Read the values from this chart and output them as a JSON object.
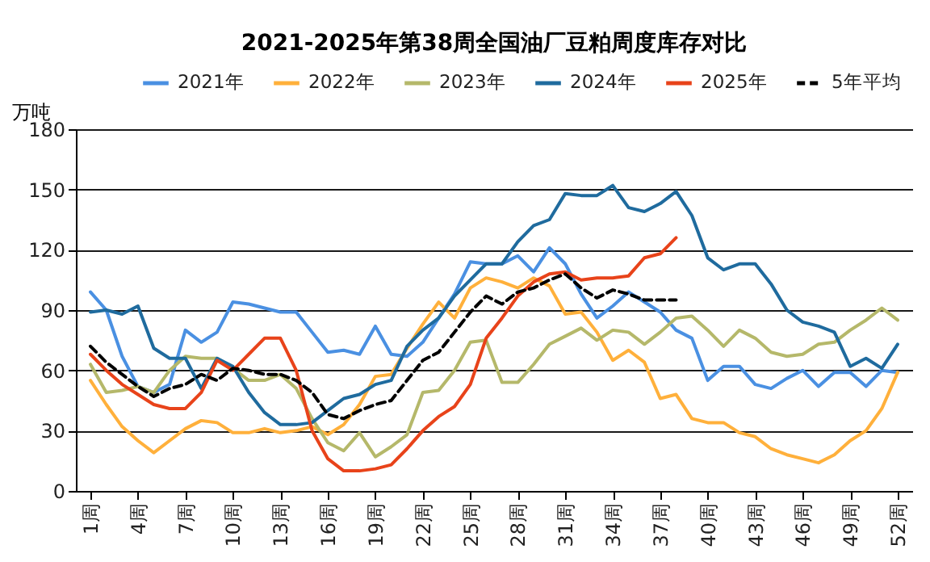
{
  "chart_data": {
    "type": "line",
    "title": "2021-2025年第38周全国油厂豆粕周度库存对比",
    "ylabel": "万吨",
    "categories": [
      "1周",
      null,
      null,
      "4周",
      null,
      null,
      "7周",
      null,
      null,
      "10周",
      null,
      null,
      "13周",
      null,
      null,
      "16周",
      null,
      null,
      "19周",
      null,
      null,
      "22周",
      null,
      null,
      "25周",
      null,
      null,
      "28周",
      null,
      null,
      "31周",
      null,
      null,
      "34周",
      null,
      null,
      "37周",
      null,
      null,
      "40周",
      null,
      null,
      "43周",
      null,
      null,
      "46周",
      null,
      null,
      "49周",
      null,
      null,
      "52周"
    ],
    "series": [
      {
        "name": "2021年",
        "color": "#4a90e2",
        "values": [
          99,
          90,
          67,
          52,
          49,
          53,
          80,
          74,
          79,
          94,
          93,
          91,
          89,
          89,
          79,
          69,
          70,
          68,
          82,
          68,
          67,
          74,
          86,
          98,
          114,
          113,
          113,
          117,
          109,
          121,
          113,
          98,
          86,
          92,
          99,
          94,
          89,
          80,
          76,
          55,
          62,
          62,
          53,
          51,
          56,
          60,
          52,
          59,
          59,
          52,
          60,
          59
        ]
      },
      {
        "name": "2022年",
        "color": "#ffb03b",
        "values": [
          55,
          43,
          32,
          25,
          19,
          25,
          31,
          35,
          34,
          29,
          29,
          31,
          29,
          30,
          32,
          28,
          33,
          43,
          57,
          58,
          71,
          83,
          94,
          86,
          101,
          106,
          104,
          101,
          106,
          102,
          88,
          89,
          79,
          65,
          70,
          64,
          46,
          48,
          36,
          34,
          34,
          29,
          27,
          21,
          18,
          16,
          14,
          18,
          25,
          30,
          41,
          59
        ]
      },
      {
        "name": "2023年",
        "color": "#b5b86a",
        "values": [
          63,
          49,
          50,
          52,
          49,
          60,
          67,
          66,
          66,
          61,
          55,
          55,
          58,
          51,
          36,
          24,
          20,
          29,
          17,
          22,
          28,
          49,
          50,
          60,
          74,
          75,
          54,
          54,
          63,
          73,
          77,
          81,
          75,
          80,
          79,
          73,
          79,
          86,
          87,
          80,
          72,
          80,
          76,
          69,
          67,
          68,
          73,
          74,
          80,
          85,
          91,
          85
        ]
      },
      {
        "name": "2024年",
        "color": "#1f6b9e",
        "values": [
          89,
          90,
          88,
          92,
          71,
          66,
          66,
          51,
          66,
          62,
          49,
          39,
          33,
          33,
          34,
          40,
          46,
          48,
          53,
          55,
          72,
          80,
          86,
          97,
          105,
          113,
          113,
          124,
          132,
          135,
          148,
          147,
          147,
          152,
          141,
          139,
          143,
          149,
          137,
          116,
          110,
          113,
          113,
          103,
          90,
          84,
          82,
          79,
          62,
          66,
          61,
          73
        ]
      },
      {
        "name": "2025年",
        "color": "#e8431a",
        "values": [
          68,
          60,
          53,
          48,
          43,
          41,
          41,
          49,
          65,
          60,
          68,
          76,
          76,
          60,
          30,
          16,
          10,
          10,
          11,
          13,
          21,
          30,
          37,
          42,
          53,
          76,
          86,
          97,
          104,
          108,
          109,
          105,
          106,
          106,
          107,
          116,
          118,
          126,
          null,
          null,
          null,
          null,
          null,
          null,
          null,
          null,
          null,
          null,
          null,
          null,
          null,
          null
        ]
      },
      {
        "name": "5年平均",
        "color": "#000000",
        "line_style": "dashed",
        "values": [
          72,
          64,
          58,
          52,
          47,
          51,
          53,
          58,
          55,
          61,
          60,
          58,
          58,
          55,
          49,
          38,
          36,
          40,
          43,
          45,
          55,
          65,
          69,
          79,
          89,
          97,
          93,
          99,
          101,
          105,
          108,
          101,
          96,
          100,
          98,
          95,
          95,
          95,
          null,
          null,
          null,
          null,
          null,
          null,
          null,
          null,
          null,
          null,
          null,
          null,
          null,
          null
        ]
      }
    ],
    "ylim": [
      0,
      180
    ],
    "yticks": [
      0,
      30,
      60,
      90,
      120,
      150,
      180
    ],
    "grid": "y",
    "legend": "top",
    "line_style": "solid",
    "marker": "none"
  }
}
